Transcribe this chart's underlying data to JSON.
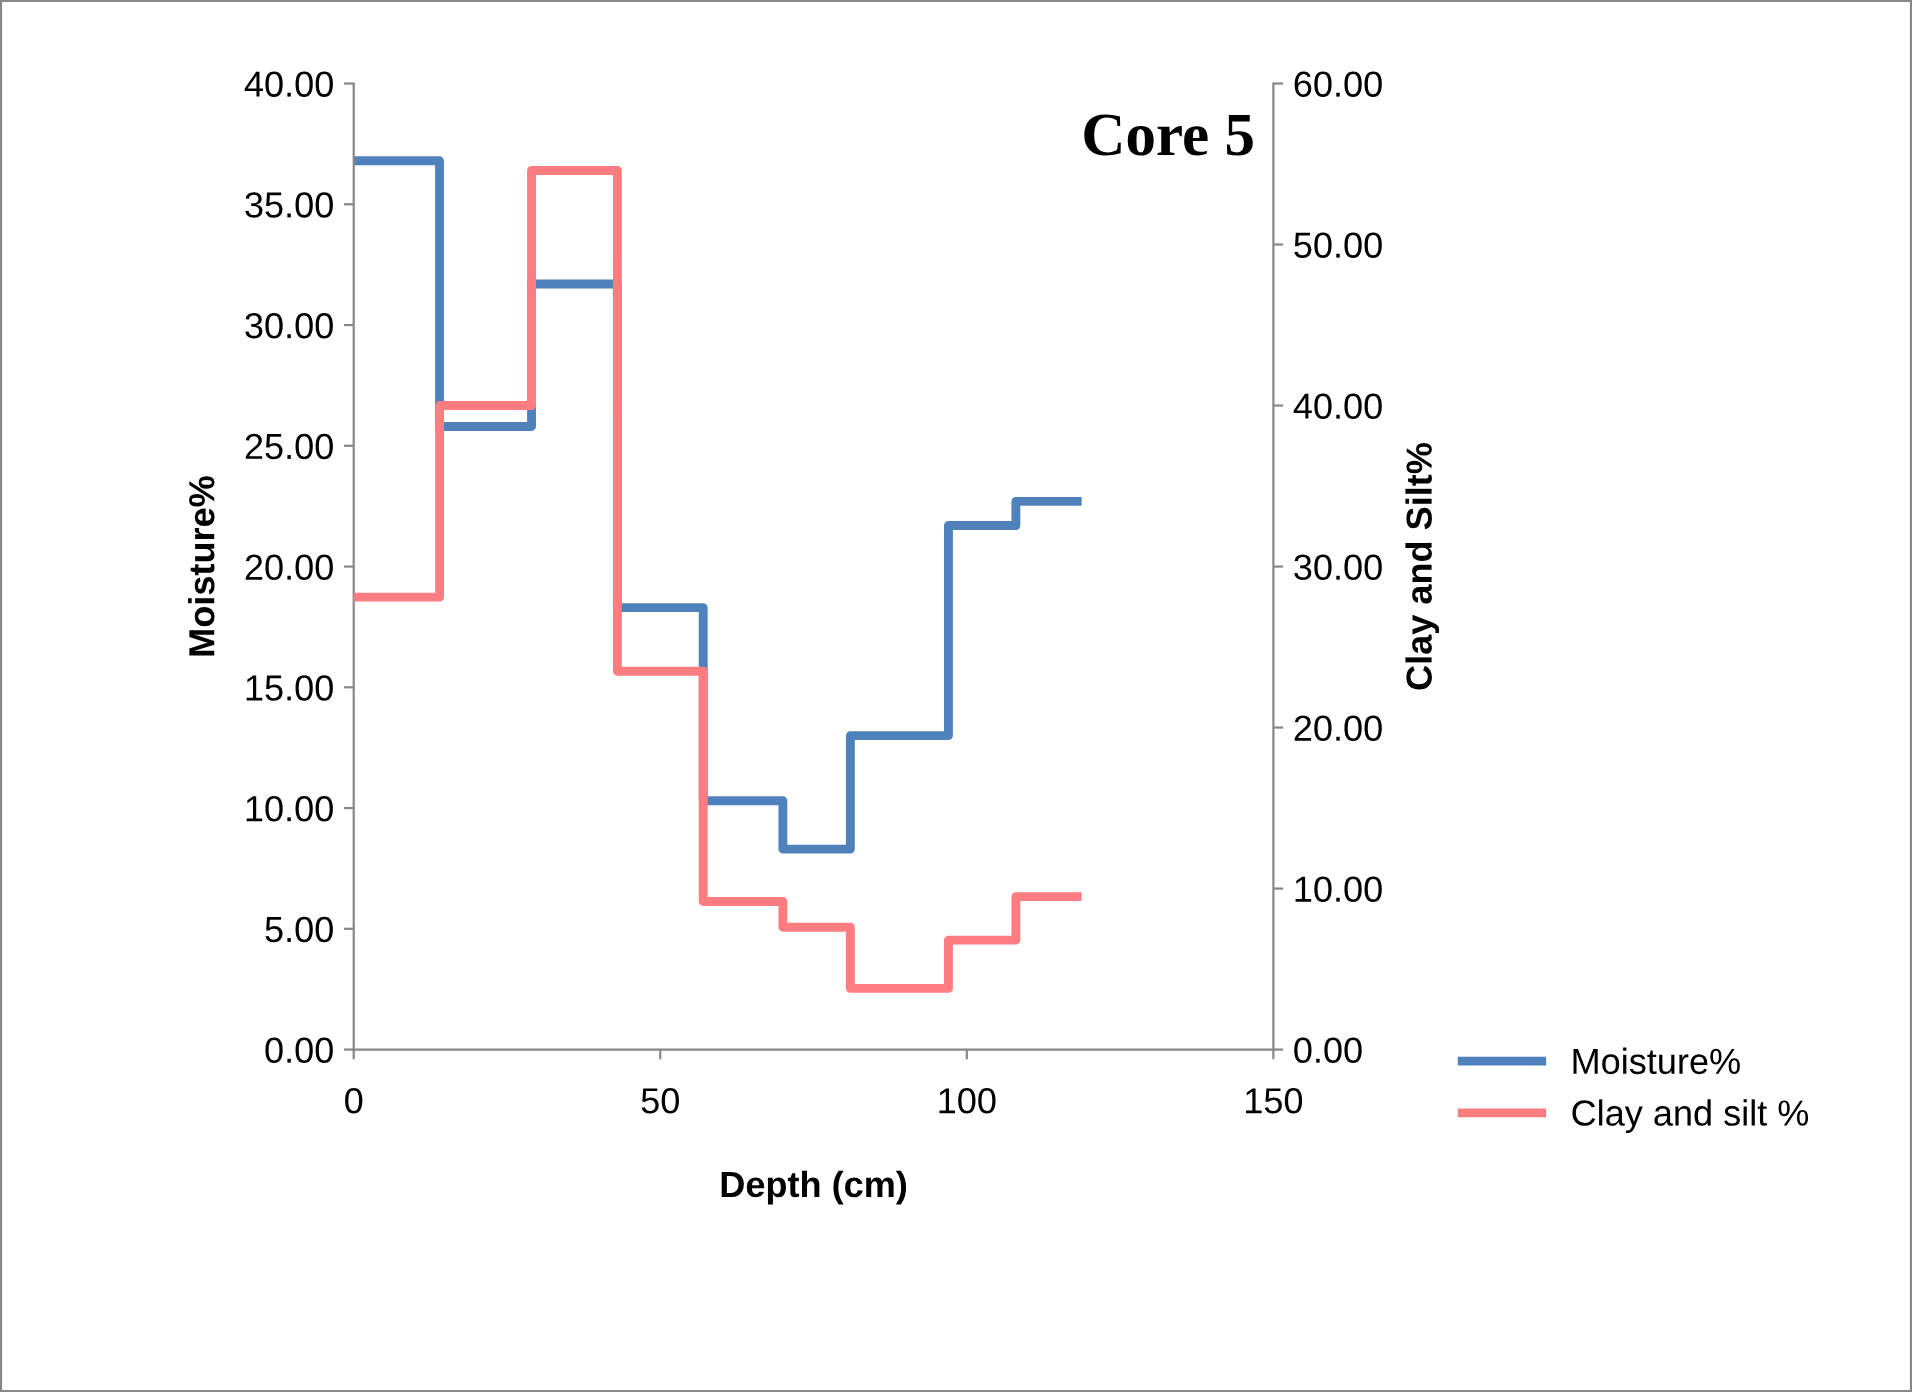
{
  "chart_data": {
    "type": "step",
    "title": "Core 5",
    "xlabel": "Depth (cm)",
    "ylabel": "Moisture%",
    "y2label": "Clay and Silt%",
    "x": [
      0,
      14,
      29,
      43,
      57,
      70,
      81,
      97,
      108,
      118
    ],
    "series": [
      {
        "name": "Moisture%",
        "color": "#4f81bd",
        "values": [
          36.8,
          25.8,
          31.7,
          18.3,
          10.3,
          8.3,
          13.0,
          21.7,
          22.7,
          22.7
        ]
      },
      {
        "name": "Clay and silt %",
        "color": "#ff7c80",
        "axis": "y2",
        "values": [
          28.1,
          40.0,
          54.6,
          23.5,
          9.2,
          7.6,
          3.8,
          6.8,
          9.5,
          9.5
        ]
      }
    ],
    "xlim": [
      0,
      150
    ],
    "xticks": [
      0,
      50,
      100,
      150
    ],
    "ylim": [
      0,
      40
    ],
    "yticks": [
      {
        "value": 0,
        "label": "0.00"
      },
      {
        "value": 5,
        "label": "5.00"
      },
      {
        "value": 10,
        "label": "10.00"
      },
      {
        "value": 15,
        "label": "15.00"
      },
      {
        "value": 20,
        "label": "20.00"
      },
      {
        "value": 25,
        "label": "25.00"
      },
      {
        "value": 30,
        "label": "30.00"
      },
      {
        "value": 35,
        "label": "35.00"
      },
      {
        "value": 40,
        "label": "40.00"
      }
    ],
    "y2lim": [
      0,
      60
    ],
    "y2ticks": [
      {
        "value": 0,
        "label": "0.00"
      },
      {
        "value": 10,
        "label": "10.00"
      },
      {
        "value": 20,
        "label": "20.00"
      },
      {
        "value": 30,
        "label": "30.00"
      },
      {
        "value": 40,
        "label": "40.00"
      },
      {
        "value": 50,
        "label": "50.00"
      },
      {
        "value": 60,
        "label": "60.00"
      }
    ],
    "grid": false,
    "legend": "right",
    "line_style": "solid"
  }
}
